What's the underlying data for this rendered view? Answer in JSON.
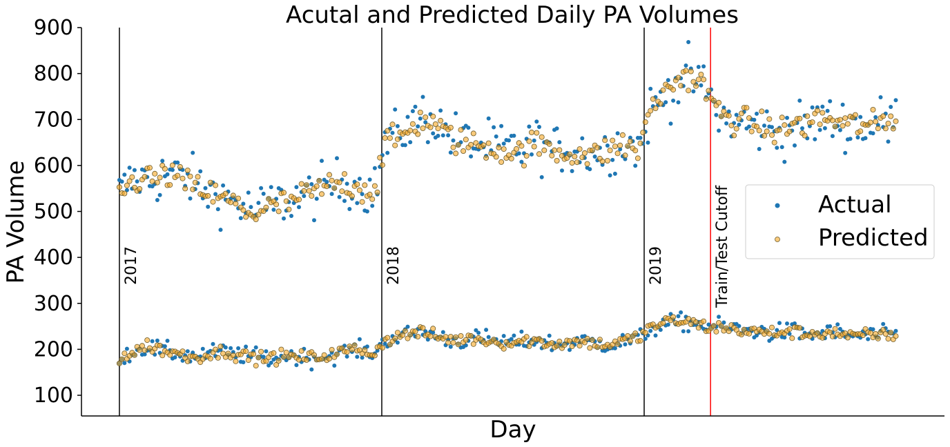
{
  "chart_data": {
    "type": "scatter",
    "title": "Acutal and Predicted Daily PA Volumes",
    "xlabel": "Day",
    "ylabel": "PA Volume",
    "ylim": [
      55,
      900
    ],
    "yticks": [
      100,
      200,
      300,
      400,
      500,
      600,
      700,
      800,
      900
    ],
    "x_range_days": [
      -60,
      1305
    ],
    "legend": {
      "position": "center-right",
      "entries": [
        "Actual",
        "Predicted"
      ]
    },
    "grid": false,
    "colors": {
      "actual": "#1f77b4",
      "predicted": "#f5a623",
      "predicted_edge": "#6b5a2a",
      "cutoff": "#ff0000",
      "year_line": "#000000"
    },
    "vlines": [
      {
        "label": "2017",
        "day": 0,
        "color": "#000000"
      },
      {
        "label": "2018",
        "day": 415,
        "color": "#000000"
      },
      {
        "label": "2019",
        "day": 830,
        "color": "#000000"
      },
      {
        "label": "Train/Test Cutoff",
        "day": 935,
        "color": "#ff0000"
      }
    ],
    "series": [
      {
        "name": "Actual",
        "groups": [
          {
            "label": "high",
            "x": [
              0,
              15,
              30,
              45,
              60,
              75,
              90,
              105,
              120,
              135,
              150,
              165,
              180,
              195,
              210,
              225,
              240,
              255,
              270,
              285,
              300,
              315,
              330,
              345,
              360,
              375,
              390,
              405,
              420,
              435,
              450,
              465,
              480,
              495,
              510,
              525,
              540,
              555,
              570,
              585,
              600,
              615,
              630,
              645,
              660,
              675,
              690,
              705,
              720,
              735,
              750,
              765,
              780,
              795,
              810,
              825,
              840,
              855,
              870,
              885,
              900,
              915,
              930,
              945,
              960,
              975,
              990,
              1005,
              1020,
              1035,
              1050,
              1065,
              1080,
              1095,
              1110,
              1125,
              1140,
              1155,
              1170,
              1185,
              1200,
              1215,
              1230
            ],
            "y": [
              540,
              560,
              575,
              565,
              570,
              585,
              580,
              575,
              560,
              545,
              540,
              530,
              525,
              510,
              500,
              505,
              515,
              520,
              525,
              530,
              535,
              545,
              550,
              560,
              565,
              555,
              550,
              545,
              650,
              660,
              680,
              690,
              710,
              700,
              680,
              665,
              655,
              650,
              640,
              645,
              635,
              640,
              630,
              645,
              650,
              640,
              630,
              640,
              635,
              630,
              625,
              630,
              640,
              650,
              645,
              640,
              720,
              740,
              760,
              785,
              800,
              775,
              765,
              710,
              700,
              695,
              690,
              685,
              680,
              675,
              670,
              685,
              680,
              690,
              700,
              695,
              690,
              685,
              690,
              680,
              695,
              690,
              700
            ]
          },
          {
            "label": "low",
            "x": [
              0,
              15,
              30,
              45,
              60,
              75,
              90,
              105,
              120,
              135,
              150,
              165,
              180,
              195,
              210,
              225,
              240,
              255,
              270,
              285,
              300,
              315,
              330,
              345,
              360,
              375,
              390,
              405,
              420,
              435,
              450,
              465,
              480,
              495,
              510,
              525,
              540,
              555,
              570,
              585,
              600,
              615,
              630,
              645,
              660,
              675,
              690,
              705,
              720,
              735,
              750,
              765,
              780,
              795,
              810,
              825,
              840,
              855,
              870,
              885,
              900,
              915,
              930,
              945,
              960,
              975,
              990,
              1005,
              1020,
              1035,
              1050,
              1065,
              1080,
              1095,
              1110,
              1125,
              1140,
              1155,
              1170,
              1185,
              1200,
              1215,
              1230
            ],
            "y": [
              185,
              190,
              200,
              205,
              200,
              195,
              190,
              188,
              185,
              190,
              192,
              195,
              190,
              188,
              185,
              182,
              180,
              183,
              186,
              185,
              180,
              182,
              185,
              190,
              195,
              198,
              195,
              193,
              220,
              225,
              230,
              235,
              238,
              232,
              225,
              220,
              218,
              222,
              225,
              220,
              218,
              215,
              215,
              218,
              220,
              215,
              210,
              212,
              215,
              218,
              215,
              212,
              210,
              215,
              220,
              225,
              245,
              250,
              255,
              260,
              258,
              255,
              250,
              250,
              248,
              245,
              240,
              240,
              238,
              235,
              238,
              240,
              235,
              232,
              235,
              238,
              235,
              230,
              228,
              230,
              232,
              230,
              232
            ]
          }
        ]
      },
      {
        "name": "Predicted",
        "groups": [
          {
            "label": "high",
            "x": [
              0,
              15,
              30,
              45,
              60,
              75,
              90,
              105,
              120,
              135,
              150,
              165,
              180,
              195,
              210,
              225,
              240,
              255,
              270,
              285,
              300,
              315,
              330,
              345,
              360,
              375,
              390,
              405,
              420,
              435,
              450,
              465,
              480,
              495,
              510,
              525,
              540,
              555,
              570,
              585,
              600,
              615,
              630,
              645,
              660,
              675,
              690,
              705,
              720,
              735,
              750,
              765,
              780,
              795,
              810,
              825,
              840,
              855,
              870,
              885,
              900,
              915,
              930,
              945,
              960,
              975,
              990,
              1005,
              1020,
              1035,
              1050,
              1065,
              1080,
              1095,
              1110,
              1125,
              1140,
              1155,
              1170,
              1185,
              1200,
              1215,
              1230
            ],
            "y": [
              545,
              555,
              570,
              575,
              570,
              580,
              575,
              560,
              555,
              545,
              535,
              525,
              520,
              505,
              495,
              500,
              510,
              515,
              520,
              530,
              540,
              545,
              555,
              560,
              560,
              555,
              548,
              545,
              655,
              650,
              670,
              685,
              700,
              695,
              675,
              660,
              650,
              645,
              645,
              640,
              635,
              630,
              625,
              640,
              645,
              640,
              630,
              625,
              630,
              625,
              620,
              630,
              635,
              645,
              640,
              635,
              730,
              745,
              770,
              790,
              795,
              785,
              760,
              720,
              705,
              700,
              695,
              690,
              680,
              678,
              675,
              690,
              688,
              695,
              705,
              700,
              692,
              688,
              692,
              685,
              690,
              695,
              705
            ]
          },
          {
            "label": "low",
            "x": [
              0,
              15,
              30,
              45,
              60,
              75,
              90,
              105,
              120,
              135,
              150,
              165,
              180,
              195,
              210,
              225,
              240,
              255,
              270,
              285,
              300,
              315,
              330,
              345,
              360,
              375,
              390,
              405,
              420,
              435,
              450,
              465,
              480,
              495,
              510,
              525,
              540,
              555,
              570,
              585,
              600,
              615,
              630,
              645,
              660,
              675,
              690,
              705,
              720,
              735,
              750,
              765,
              780,
              795,
              810,
              825,
              840,
              855,
              870,
              885,
              900,
              915,
              930,
              945,
              960,
              975,
              990,
              1005,
              1020,
              1035,
              1050,
              1065,
              1080,
              1095,
              1110,
              1125,
              1140,
              1155,
              1170,
              1185,
              1200,
              1215,
              1230
            ],
            "y": [
              180,
              188,
              198,
              210,
              202,
              195,
              192,
              186,
              183,
              188,
              190,
              196,
              192,
              186,
              183,
              180,
              182,
              185,
              184,
              183,
              182,
              184,
              188,
              192,
              197,
              200,
              196,
              192,
              222,
              224,
              232,
              236,
              236,
              230,
              224,
              222,
              220,
              224,
              222,
              218,
              216,
              214,
              216,
              220,
              218,
              214,
              212,
              214,
              216,
              216,
              214,
              210,
              212,
              218,
              222,
              228,
              250,
              255,
              260,
              262,
              258,
              255,
              248,
              248,
              246,
              243,
              240,
              238,
              236,
              236,
              238,
              238,
              234,
              234,
              236,
              236,
              234,
              228,
              228,
              232,
              230,
              232,
              234
            ]
          }
        ]
      }
    ]
  }
}
